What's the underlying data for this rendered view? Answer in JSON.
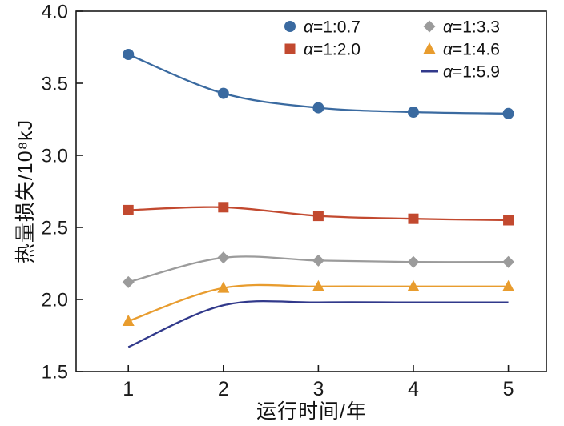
{
  "chart_data": {
    "type": "line",
    "x": [
      1,
      2,
      3,
      4,
      5
    ],
    "series": [
      {
        "name": "α=1:0.7",
        "color": "#3a6aa0",
        "marker": "circle",
        "values": [
          3.7,
          3.43,
          3.33,
          3.3,
          3.29
        ]
      },
      {
        "name": "α=1:2.0",
        "color": "#c2492f",
        "marker": "square",
        "values": [
          2.62,
          2.64,
          2.58,
          2.56,
          2.55
        ]
      },
      {
        "name": "α=1:3.3",
        "color": "#9b9b9b",
        "marker": "diamond",
        "values": [
          2.12,
          2.29,
          2.27,
          2.26,
          2.26
        ]
      },
      {
        "name": "α=1:4.6",
        "color": "#e89c2e",
        "marker": "triangle",
        "values": [
          1.85,
          2.08,
          2.09,
          2.09,
          2.09
        ]
      },
      {
        "name": "α=1:5.9",
        "color": "#31398b",
        "marker": "dash",
        "values": [
          1.67,
          1.96,
          1.98,
          1.98,
          1.98
        ]
      }
    ],
    "xlabel": "运行时间/年",
    "ylabel": "热量损失/10⁸kJ",
    "xticks": [
      1,
      2,
      3,
      4,
      5
    ],
    "yticks": [
      1.5,
      2.0,
      2.5,
      3.0,
      3.5,
      4.0
    ],
    "xlim": [
      0.45,
      5.4
    ],
    "ylim": [
      1.5,
      4.0
    ],
    "grid": false,
    "legend_position": "inside-top",
    "axis_color": "#1a1a1a",
    "tick_label_color": "#1a1a1a",
    "background": "#ffffff"
  }
}
